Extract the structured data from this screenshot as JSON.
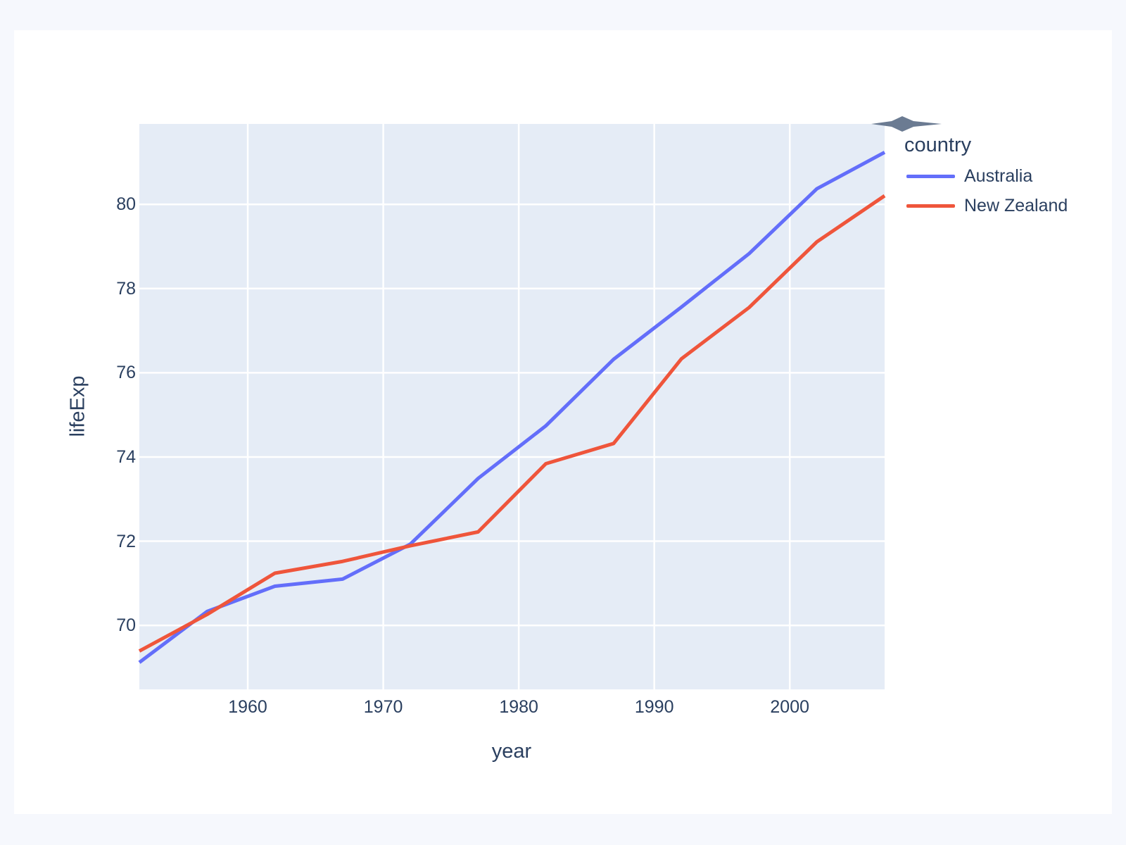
{
  "page": {
    "background_color": "#f6f8fd",
    "card_color": "#ffffff"
  },
  "chart_data": {
    "type": "line",
    "title": "",
    "xlabel": "year",
    "ylabel": "lifeExp",
    "x": [
      1952,
      1957,
      1962,
      1967,
      1972,
      1977,
      1982,
      1987,
      1992,
      1997,
      2002,
      2007
    ],
    "series": [
      {
        "name": "Australia",
        "color": "#636EFA",
        "values": [
          69.12,
          70.33,
          70.93,
          71.1,
          71.93,
          73.49,
          74.74,
          76.32,
          77.56,
          78.83,
          80.37,
          81.235
        ]
      },
      {
        "name": "New Zealand",
        "color": "#EF553B",
        "values": [
          69.39,
          70.26,
          71.24,
          71.52,
          71.89,
          72.22,
          73.84,
          74.32,
          76.33,
          77.55,
          79.11,
          80.204
        ]
      }
    ],
    "xlim": [
      1952,
      2007
    ],
    "ylim": [
      68.48,
      81.91
    ],
    "xticks": [
      1960,
      1970,
      1980,
      1990,
      2000
    ],
    "yticks": [
      70,
      72,
      74,
      76,
      78,
      80
    ],
    "grid": true,
    "plot_bgcolor": "#E5ECF6",
    "gridcolor": "#ffffff",
    "font_color": "#2a3f5f",
    "legend_position": "right-outside-top"
  },
  "legend": {
    "title": "country",
    "items": [
      {
        "label": "Australia",
        "color": "#636EFA"
      },
      {
        "label": "New Zealand",
        "color": "#EF553B"
      }
    ]
  },
  "icons": {
    "corner_arrow": {
      "name": "diamond-arrow-icon",
      "color": "#6b7b92"
    }
  }
}
